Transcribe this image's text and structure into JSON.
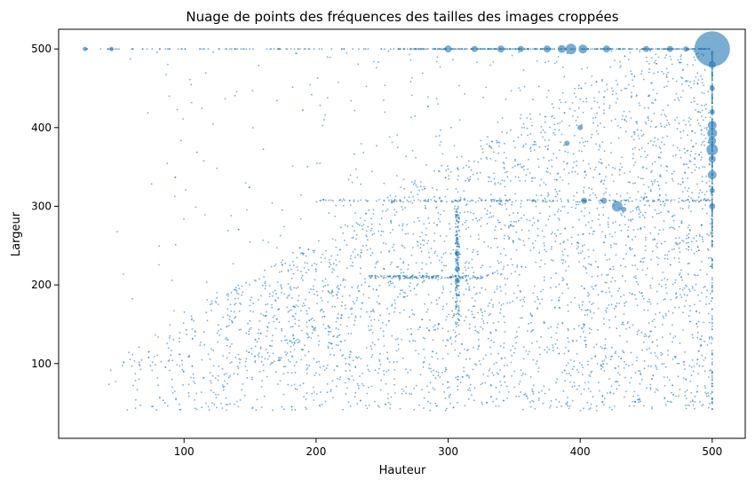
{
  "chart_data": {
    "type": "scatter",
    "title": "Nuage de points des fréquences des tailles des images croppées",
    "xlabel": "Hauteur",
    "ylabel": "Largeur",
    "xlim": [
      5,
      525
    ],
    "ylim": [
      5,
      525
    ],
    "xticks": [
      100,
      200,
      300,
      400,
      500
    ],
    "yticks": [
      100,
      200,
      300,
      400,
      500
    ],
    "grid": false,
    "legend": "none",
    "point_color": "#1f77b4",
    "point_opacity": 0.6,
    "big_points": [
      {
        "x": 500,
        "y": 500,
        "size": 20
      },
      {
        "x": 393,
        "y": 500,
        "size": 6
      },
      {
        "x": 402,
        "y": 500,
        "size": 5
      },
      {
        "x": 386,
        "y": 500,
        "size": 4.5
      },
      {
        "x": 375,
        "y": 500,
        "size": 4
      },
      {
        "x": 340,
        "y": 500,
        "size": 4
      },
      {
        "x": 300,
        "y": 500,
        "size": 4
      },
      {
        "x": 320,
        "y": 500,
        "size": 3.5
      },
      {
        "x": 355,
        "y": 500,
        "size": 3.5
      },
      {
        "x": 450,
        "y": 500,
        "size": 3.5
      },
      {
        "x": 468,
        "y": 500,
        "size": 3.5
      },
      {
        "x": 420,
        "y": 500,
        "size": 4
      },
      {
        "x": 480,
        "y": 500,
        "size": 3
      },
      {
        "x": 500,
        "y": 372,
        "size": 6.5
      },
      {
        "x": 500,
        "y": 393,
        "size": 5.5
      },
      {
        "x": 500,
        "y": 403,
        "size": 5
      },
      {
        "x": 500,
        "y": 340,
        "size": 5
      },
      {
        "x": 500,
        "y": 383,
        "size": 4.5
      },
      {
        "x": 500,
        "y": 360,
        "size": 4
      },
      {
        "x": 500,
        "y": 480,
        "size": 4
      },
      {
        "x": 500,
        "y": 300,
        "size": 3.5
      },
      {
        "x": 500,
        "y": 320,
        "size": 3
      },
      {
        "x": 500,
        "y": 420,
        "size": 3
      },
      {
        "x": 500,
        "y": 450,
        "size": 3
      },
      {
        "x": 428,
        "y": 300,
        "size": 6
      },
      {
        "x": 418,
        "y": 307,
        "size": 3.5
      },
      {
        "x": 403,
        "y": 307,
        "size": 3.5
      },
      {
        "x": 433,
        "y": 296,
        "size": 3
      },
      {
        "x": 307,
        "y": 220,
        "size": 3
      },
      {
        "x": 307,
        "y": 240,
        "size": 3
      },
      {
        "x": 307,
        "y": 205,
        "size": 3
      },
      {
        "x": 400,
        "y": 400,
        "size": 3
      },
      {
        "x": 390,
        "y": 380,
        "size": 3
      },
      {
        "x": 45,
        "y": 500,
        "size": 2.5
      },
      {
        "x": 25,
        "y": 500,
        "size": 2.5
      }
    ],
    "point_count": 5000
  }
}
